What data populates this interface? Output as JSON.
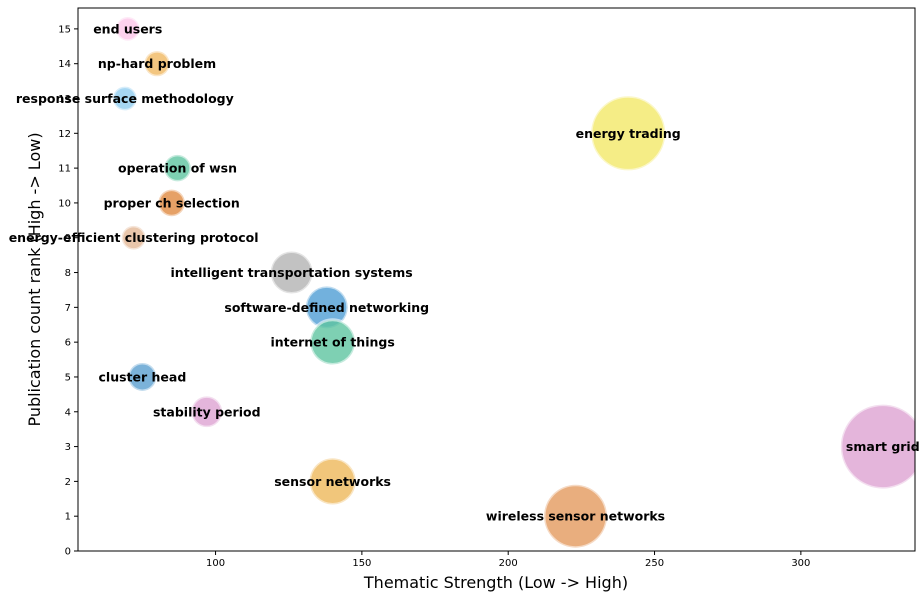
{
  "chart_data": {
    "type": "scatter",
    "subtype": "bubble",
    "title": "",
    "xlabel": "Thematic Strength (Low -> High)",
    "ylabel": "Publication count rank (High -> Low)",
    "xlim": [
      53,
      339
    ],
    "ylim": [
      0,
      15.6
    ],
    "xticks": [
      100,
      150,
      200,
      250,
      300
    ],
    "yticks": [
      0,
      1,
      2,
      3,
      4,
      5,
      6,
      7,
      8,
      9,
      10,
      11,
      12,
      13,
      14,
      15
    ],
    "grid": false,
    "points": [
      {
        "label": "end users",
        "x": 70,
        "y": 15,
        "size": 0.17,
        "color": "#fcc6e8"
      },
      {
        "label": "np-hard problem",
        "x": 80,
        "y": 14,
        "size": 0.18,
        "color": "#f0b860"
      },
      {
        "label": "response surface methodology",
        "x": 69,
        "y": 13,
        "size": 0.17,
        "color": "#90cdf0"
      },
      {
        "label": "energy trading",
        "x": 241,
        "y": 12,
        "size": 0.53,
        "color": "#f2e968"
      },
      {
        "label": "operation of wsn",
        "x": 87,
        "y": 11,
        "size": 0.19,
        "color": "#5ec4a0"
      },
      {
        "label": "proper ch selection",
        "x": 85,
        "y": 10,
        "size": 0.19,
        "color": "#e08a40"
      },
      {
        "label": "energy-efficient clustering protocol",
        "x": 72,
        "y": 9,
        "size": 0.17,
        "color": "#e3b896"
      },
      {
        "label": "intelligent transportation systems",
        "x": 126,
        "y": 8,
        "size": 0.3,
        "color": "#b3b3b3"
      },
      {
        "label": "software-defined networking",
        "x": 138,
        "y": 7,
        "size": 0.3,
        "color": "#4f9ed4"
      },
      {
        "label": "internet of things",
        "x": 140,
        "y": 6,
        "size": 0.32,
        "color": "#5ec4a0"
      },
      {
        "label": "cluster head",
        "x": 75,
        "y": 5,
        "size": 0.2,
        "color": "#5a9fd0"
      },
      {
        "label": "stability period",
        "x": 97,
        "y": 4,
        "size": 0.22,
        "color": "#dda2d2"
      },
      {
        "label": "sensor networks",
        "x": 140,
        "y": 2,
        "size": 0.33,
        "color": "#eeb85a"
      },
      {
        "label": "wireless sensor networks",
        "x": 223,
        "y": 1,
        "size": 0.45,
        "color": "#e49a5e"
      },
      {
        "label": "smart grid",
        "x": 328,
        "y": 3,
        "size": 0.6,
        "color": "#dda2d2"
      }
    ]
  }
}
